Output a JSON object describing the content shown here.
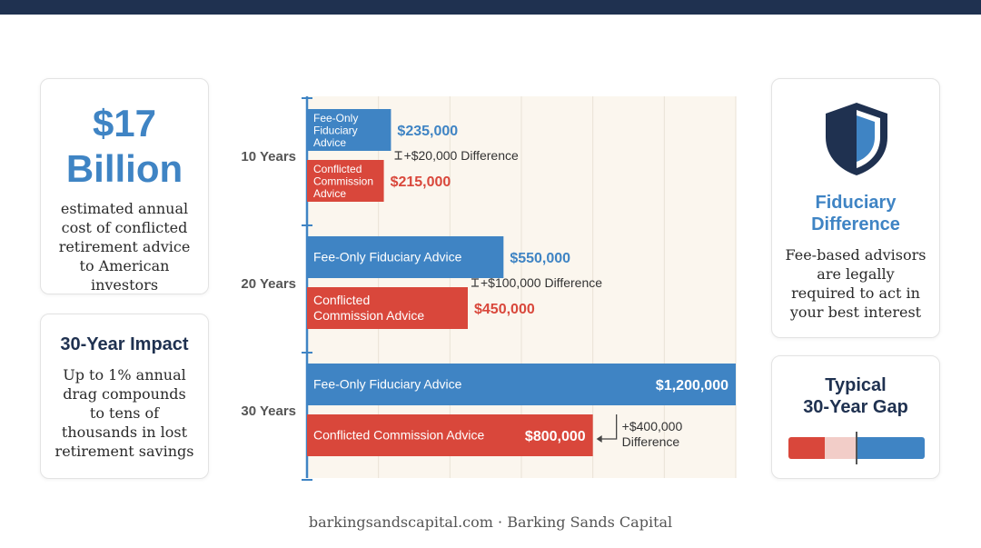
{
  "colors": {
    "navy": "#1f3150",
    "blue": "#3f84c4",
    "red": "#d9473b",
    "red_light": "#f2cdc8",
    "plot_bg": "#fbf6ee"
  },
  "left_cards": {
    "amount_line1": "$17",
    "amount_line2": "Billion",
    "amount_desc": "estimated annual cost of conflicted retirement advice to American investors",
    "impact_title": "30-Year Impact",
    "impact_desc": "Up to 1% annual drag compounds to tens of thousands in lost retirement savings"
  },
  "right_cards": {
    "shield_icon": "shield-icon",
    "fid_title_line1": "Fiduciary",
    "fid_title_line2": "Difference",
    "fid_desc": "Fee-based advisors are legally required to act in your best interest",
    "gap_title_line1": "Typical",
    "gap_title_line2": "30-Year Gap",
    "gap_fraction_conflicted": 0.667
  },
  "chart_data": {
    "type": "bar",
    "orientation": "horizontal",
    "categories": [
      "10 Years",
      "20 Years",
      "30 Years"
    ],
    "xlim": [
      0,
      1200000
    ],
    "grid": true,
    "series": [
      {
        "name": "Fee-Only Fiduciary Advice",
        "color": "#3f84c4",
        "values": [
          235000,
          550000,
          1200000
        ],
        "value_labels": [
          "$235,000",
          "$550,000",
          "$1,200,000"
        ]
      },
      {
        "name": "Conflicted Commission Advice",
        "color": "#d9473b",
        "values": [
          215000,
          450000,
          800000
        ],
        "value_labels": [
          "$215,000",
          "$450,000",
          "$800,000"
        ]
      }
    ],
    "bar_labels": {
      "fee": [
        [
          "Fee-Only",
          "Fiduciary",
          "Advice"
        ],
        [
          "Fee-Only Fiduciary Advice"
        ],
        [
          "Fee-Only Fiduciary Advice"
        ]
      ],
      "con": [
        [
          "Conflicted",
          "Commission",
          "Advice"
        ],
        [
          "Conflicted",
          "Commission Advice"
        ],
        [
          "Conflicted Commission Advice"
        ]
      ]
    },
    "annotations": [
      [
        "+$20,000 Difference"
      ],
      [
        "+$100,000 Difference"
      ],
      [
        "+$400,000",
        "Difference"
      ]
    ]
  },
  "footer": "barkingsandscapital.com · Barking Sands Capital"
}
